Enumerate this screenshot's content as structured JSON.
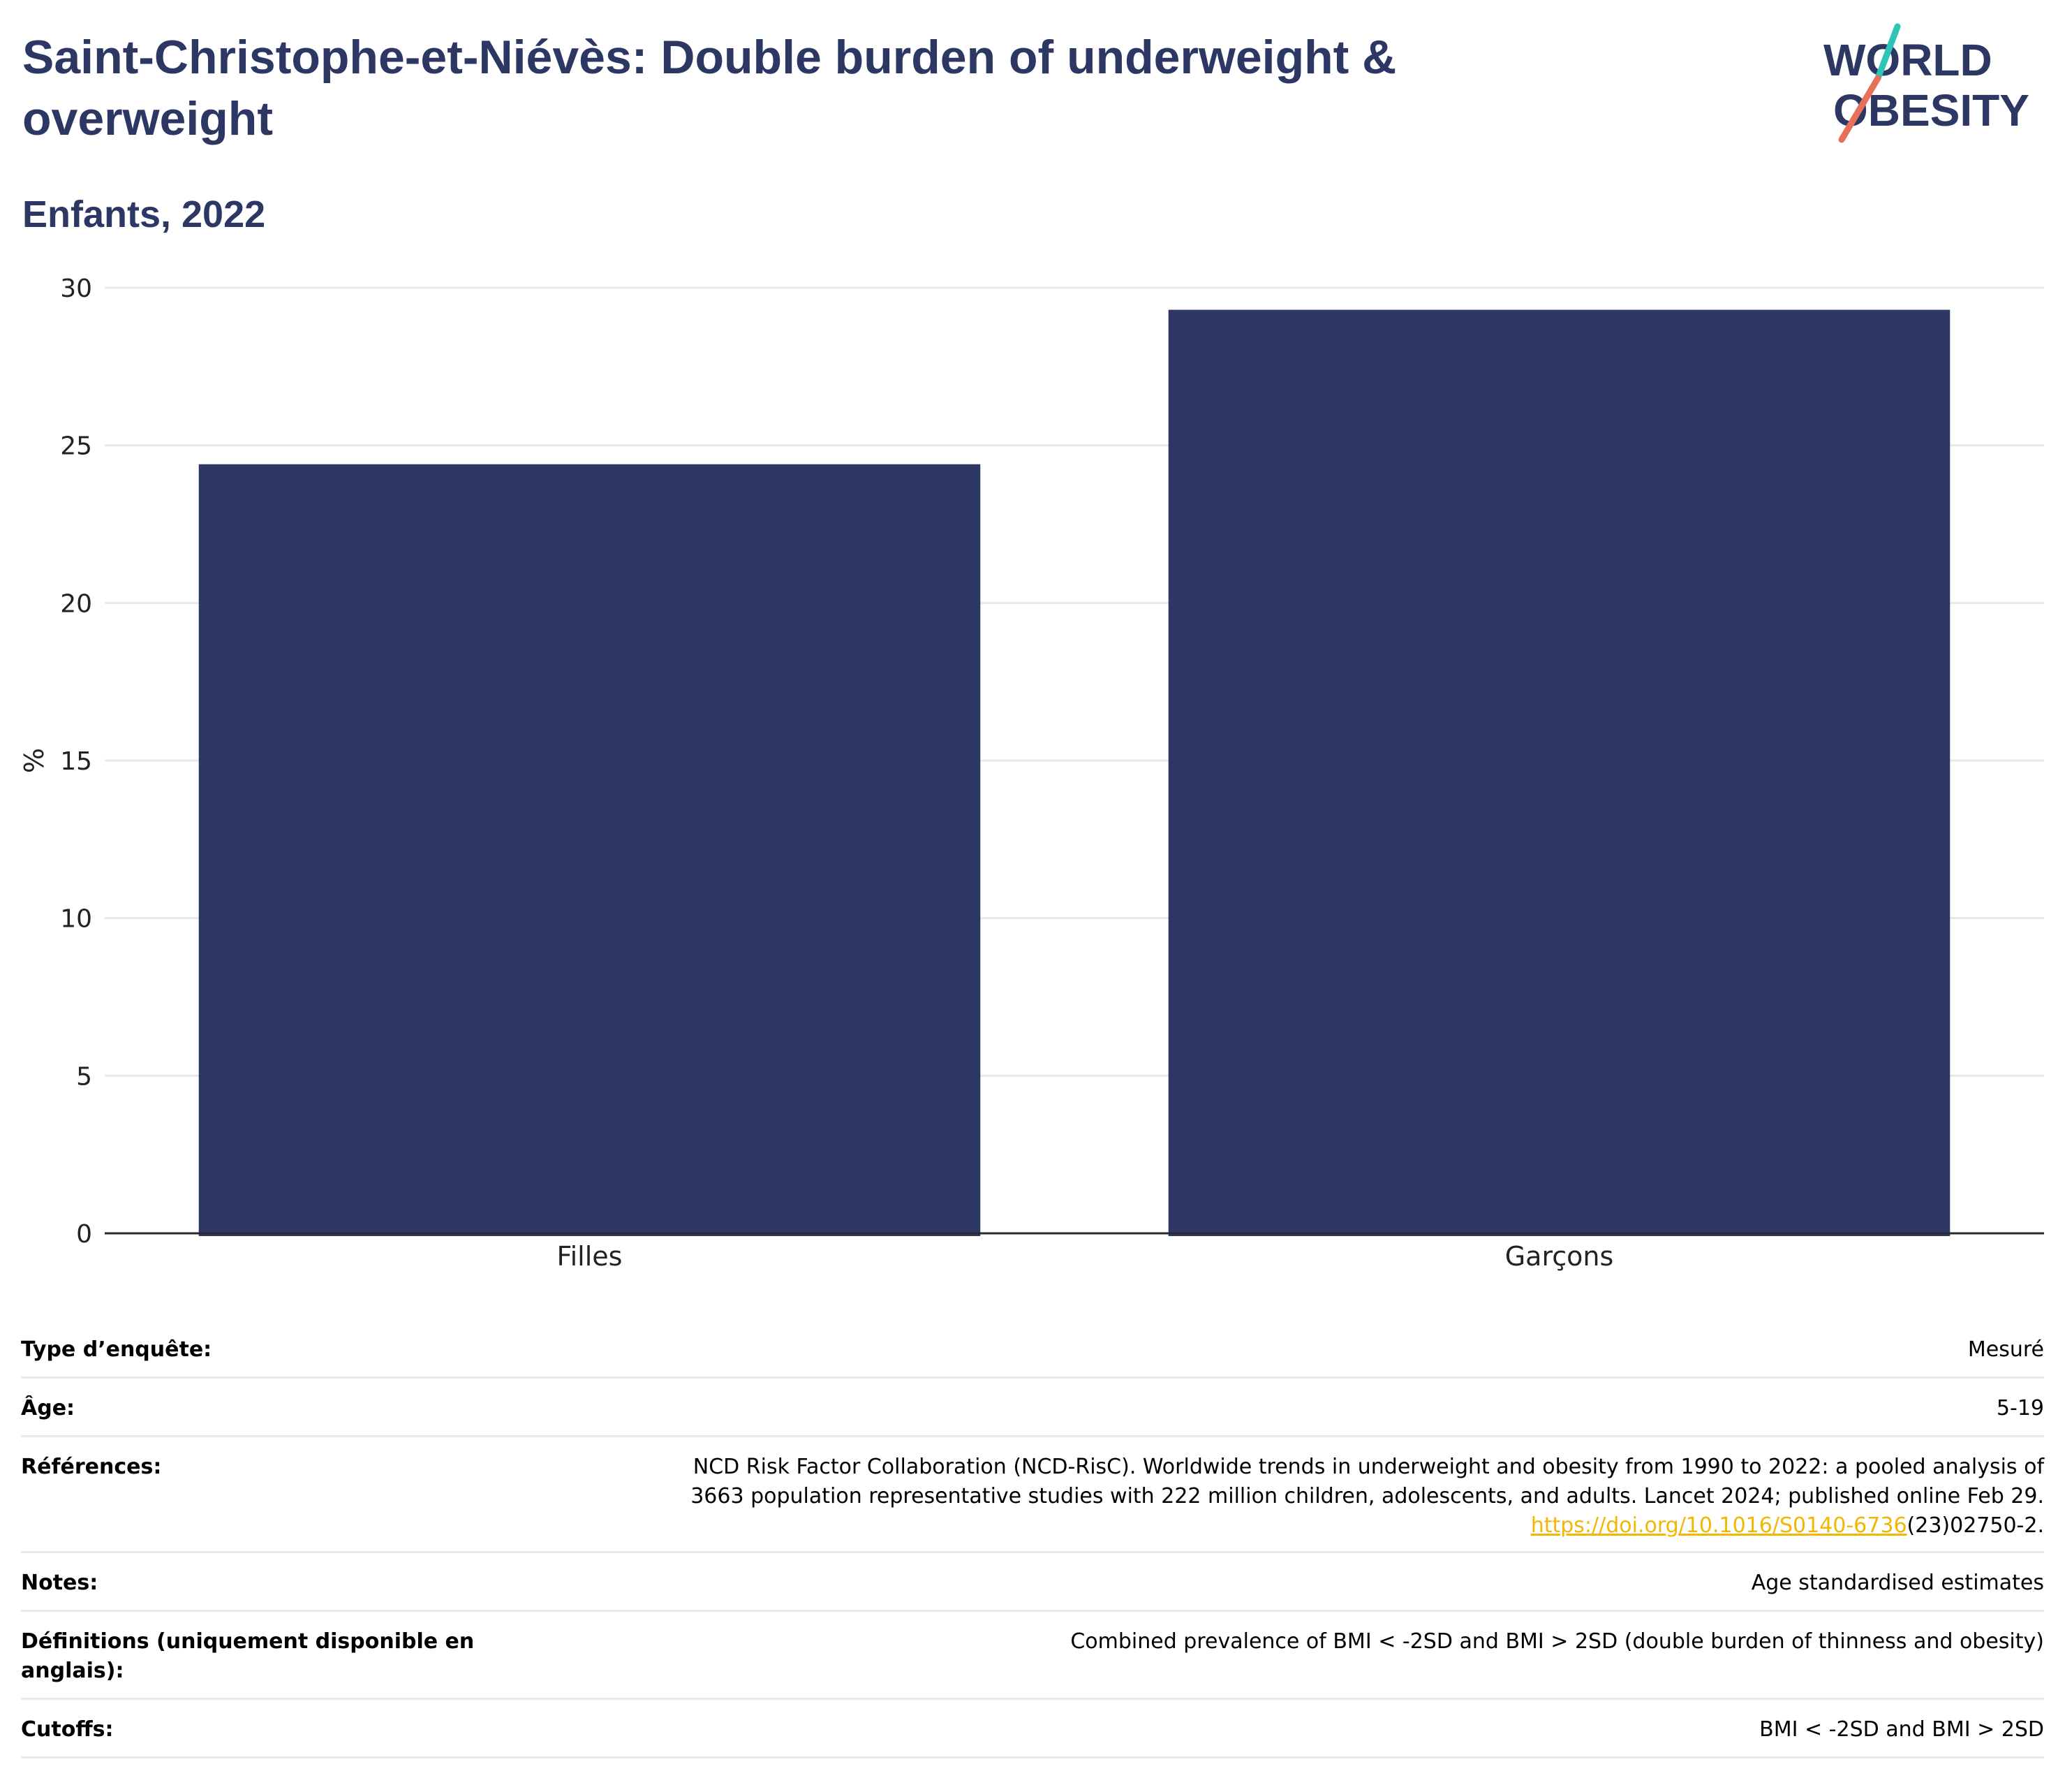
{
  "title": "Saint-Christophe-et-Niévès: Double burden of underweight & overweight",
  "subtitle": "Enfants, 2022",
  "logo": {
    "line1": "WORLD",
    "line2": "OBESITY"
  },
  "colors": {
    "bar": "#2c3764",
    "title": "#2c3764",
    "logo_teal": "#2ec4b6",
    "logo_coral": "#e8705a",
    "link": "#f2b705"
  },
  "chart_data": {
    "type": "bar",
    "categories": [
      "Filles",
      "Garçons"
    ],
    "values": [
      24.4,
      29.3
    ],
    "ylabel": "%",
    "xlabel": "",
    "ylim": [
      0,
      30
    ],
    "yticks": [
      0,
      5,
      10,
      15,
      20,
      25,
      30
    ],
    "grid": true
  },
  "meta": {
    "survey_type": {
      "label": "Type d’enquête:",
      "value": "Mesuré"
    },
    "age": {
      "label": "Âge:",
      "value": "5-19"
    },
    "references": {
      "label": "Références:",
      "line1": "NCD Risk Factor Collaboration (NCD-RisC). Worldwide trends in underweight and obesity from 1990 to 2022: a pooled analysis of",
      "line2": "3663 population representative studies with 222 million children, adolescents, and adults. Lancet 2024; published online Feb 29.",
      "link_text": "https://doi.org/10.1016/S0140-6736",
      "link_suffix": "(23)02750-2."
    },
    "notes": {
      "label": "Notes:",
      "value": "Age standardised estimates"
    },
    "definitions": {
      "label": "Définitions (uniquement disponible en anglais):",
      "value": "Combined prevalence of BMI < -2SD and BMI > 2SD (double burden of thinness and obesity)"
    },
    "cutoffs": {
      "label": "Cutoffs:",
      "value": "BMI < -2SD and BMI > 2SD"
    }
  }
}
